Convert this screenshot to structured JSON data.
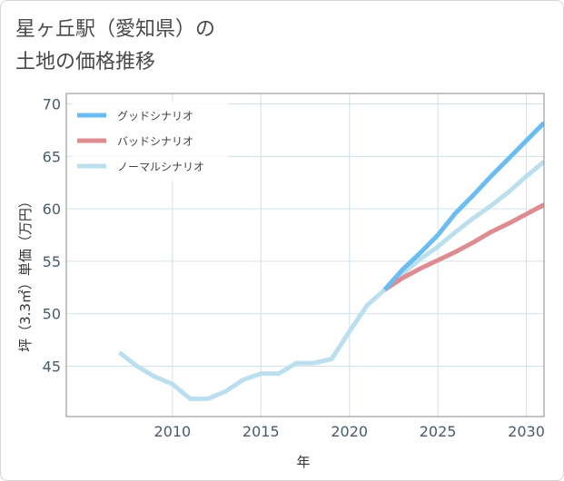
{
  "title_lines": [
    "星ヶ丘駅（愛知県）の",
    "土地の価格推移"
  ],
  "chart_data": {
    "type": "line",
    "title": "星ヶ丘駅（愛知県）の土地の価格推移",
    "xlabel": "年",
    "ylabel": "坪（3.3㎡）単価（万円）",
    "xlim": [
      2004.0,
      2031.0
    ],
    "ylim": [
      40.2,
      71.0
    ],
    "xticks": [
      2010,
      2015,
      2020,
      2025,
      2030
    ],
    "yticks": [
      45,
      50,
      55,
      60,
      65,
      70
    ],
    "grid": true,
    "legend_position": "top-left",
    "series": [
      {
        "name": "グッドシナリオ",
        "color": "#6bbcf0",
        "x": [
          2022,
          2023,
          2024,
          2025,
          2026,
          2027,
          2028,
          2029,
          2030,
          2031
        ],
        "y": [
          52.3,
          54.2,
          55.8,
          57.5,
          59.6,
          61.3,
          63.1,
          64.8,
          66.5,
          68.2
        ]
      },
      {
        "name": "バッドシナリオ",
        "color": "#de8c92",
        "x": [
          2022,
          2023,
          2024,
          2025,
          2026,
          2027,
          2028,
          2029,
          2030,
          2031
        ],
        "y": [
          52.3,
          53.4,
          54.3,
          55.1,
          55.9,
          56.8,
          57.8,
          58.6,
          59.5,
          60.4
        ]
      },
      {
        "name": "ノーマルシナリオ",
        "color": "#bcdff0",
        "x": [
          2007,
          2008,
          2009,
          2010,
          2011,
          2012,
          2013,
          2014,
          2015,
          2016,
          2017,
          2018,
          2019,
          2020,
          2021,
          2022,
          2023,
          2024,
          2025,
          2026,
          2027,
          2028,
          2029,
          2030,
          2031
        ],
        "y": [
          46.3,
          45.0,
          44.0,
          43.3,
          41.9,
          41.9,
          42.6,
          43.7,
          44.3,
          44.3,
          45.3,
          45.3,
          45.7,
          48.3,
          50.8,
          52.3,
          53.8,
          55.2,
          56.4,
          57.8,
          59.1,
          60.3,
          61.6,
          63.1,
          64.5
        ]
      }
    ]
  }
}
